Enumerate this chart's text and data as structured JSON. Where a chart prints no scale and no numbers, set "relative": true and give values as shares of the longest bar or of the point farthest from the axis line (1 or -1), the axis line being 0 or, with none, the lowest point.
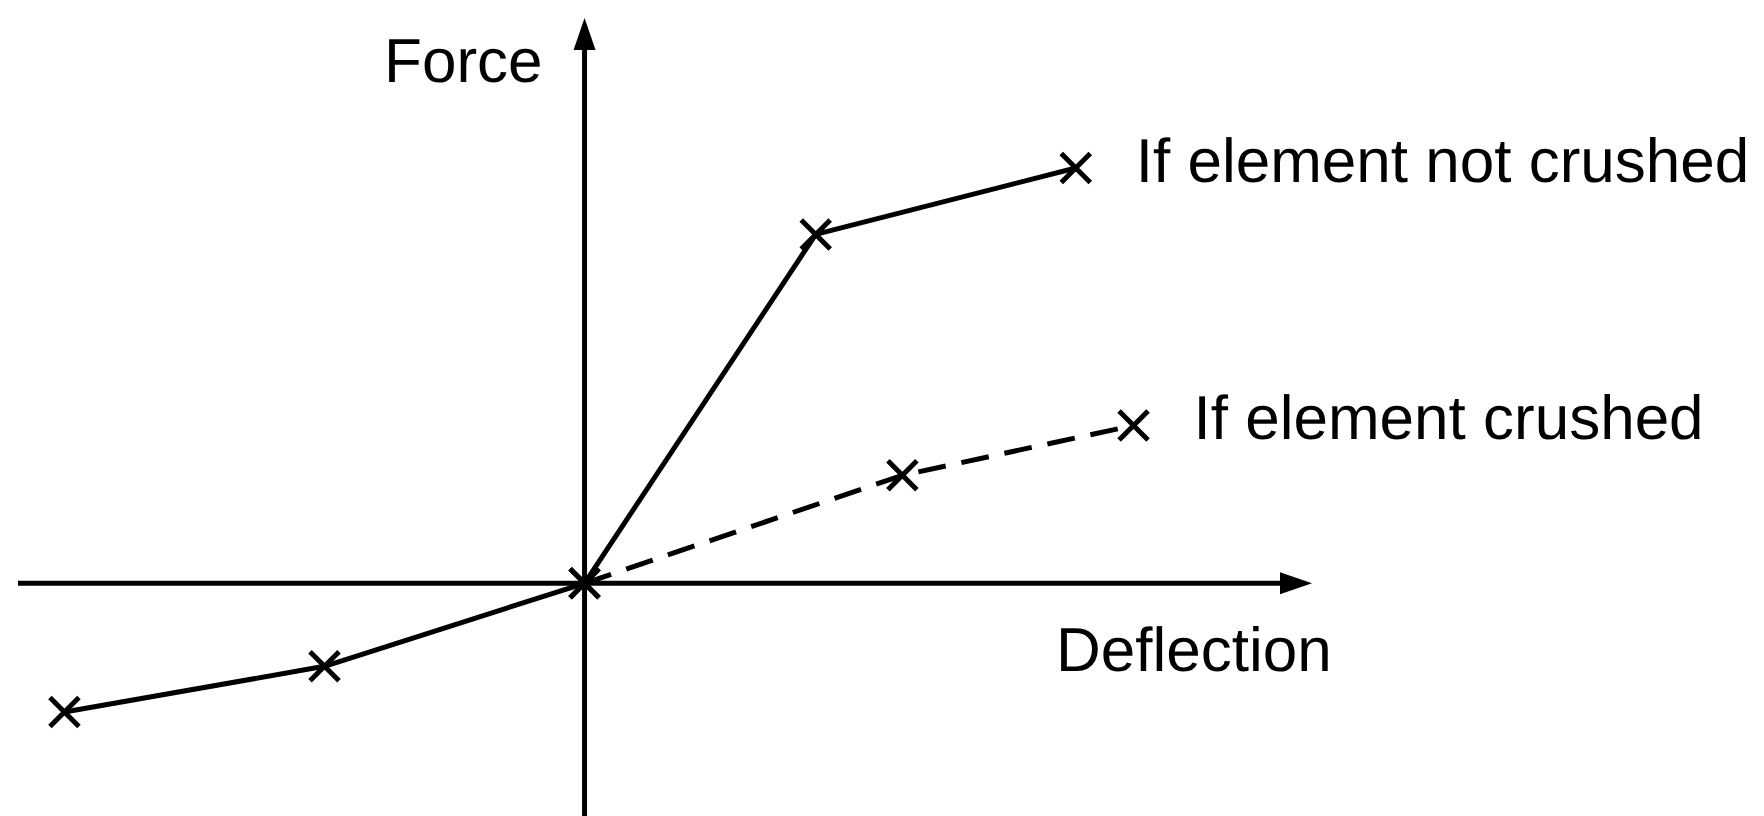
{
  "chart_data": {
    "type": "line",
    "xlabel": "Deflection",
    "ylabel": "Force",
    "relative": true,
    "marker": "cross",
    "categories": [
      null,
      null,
      null,
      null,
      null,
      null,
      null,
      null,
      null,
      null,
      null,
      null,
      null,
      null,
      null,
      null,
      null,
      null,
      null,
      null,
      null,
      null,
      null,
      null,
      null,
      null,
      null,
      null,
      null,
      null,
      null,
      null,
      null,
      null,
      null,
      null,
      null,
      null
    ],
    "series": [
      {
        "name": "If element not crushed",
        "color": "#000000",
        "line_style": "solid",
        "values": [
          -0.31,
          null,
          null,
          null,
          null,
          null,
          null,
          null,
          null,
          -0.2,
          null,
          null,
          null,
          null,
          null,
          null,
          null,
          null,
          0,
          null,
          null,
          null,
          null,
          null,
          null,
          null,
          0.84,
          null,
          null,
          null,
          null,
          null,
          null,
          null,
          null,
          1,
          null,
          null
        ]
      },
      {
        "name": "If element crushed",
        "color": "#000000",
        "line_style": "dashed",
        "values": [
          null,
          null,
          null,
          null,
          null,
          null,
          null,
          null,
          null,
          null,
          null,
          null,
          null,
          null,
          null,
          null,
          null,
          null,
          0,
          null,
          null,
          null,
          null,
          null,
          null,
          null,
          null,
          null,
          null,
          0.26,
          null,
          null,
          null,
          null,
          null,
          null,
          null,
          0.38
        ]
      }
    ]
  }
}
